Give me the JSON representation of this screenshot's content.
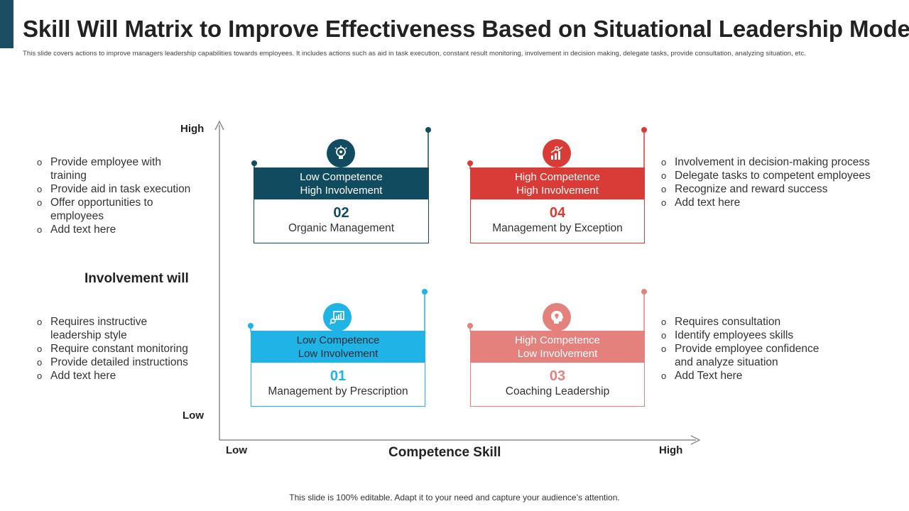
{
  "header": {
    "title": "Skill Will Matrix to Improve Effectiveness Based on Situational Leadership Model",
    "subtitle": "This slide covers actions to improve managers leadership capabilities towards employees. It includes actions such as aid in task execution, constant result monitoring, involvement in decision making,  delegate tasks, provide consultation, analyzing situation, etc."
  },
  "axes": {
    "y_high": "High",
    "y_low": "Low",
    "y_title": "Involvement will",
    "x_low": "Low",
    "x_high": "High",
    "x_title": "Competence  Skill"
  },
  "quadrants": {
    "q02": {
      "head_line1": "Low Competence",
      "head_line2": "High Involvement",
      "number": "02",
      "label": "Organic Management",
      "color": "#114b5f",
      "icon": "lightbulb-gear-icon"
    },
    "q04": {
      "head_line1": "High Competence",
      "head_line2": "High Involvement",
      "number": "04",
      "label": "Management by Exception",
      "color": "#d93b36",
      "icon": "growth-chart-icon"
    },
    "q01": {
      "head_line1": "Low Competence",
      "head_line2": "Low Involvement",
      "number": "01",
      "label": "Management by Prescription",
      "color": "#1fb3e6",
      "icon": "chart-magnifier-icon"
    },
    "q03": {
      "head_line1": "High Competence",
      "head_line2": "Low Involvement",
      "number": "03",
      "label": "Coaching Leadership",
      "color": "#e5817d",
      "icon": "head-idea-icon"
    }
  },
  "lists": {
    "top_left": [
      "Provide employee with training",
      "Provide aid in task execution",
      "Offer opportunities to employees",
      "Add text here"
    ],
    "top_right": [
      "Involvement  in decision-making process",
      "Delegate tasks to competent employees",
      "Recognize and reward success",
      "Add text here"
    ],
    "bottom_left": [
      "Requires instructive leadership style",
      "Require constant monitoring",
      "Provide detailed instructions",
      "Add text here"
    ],
    "bottom_right": [
      "Requires consultation",
      "Identify  employees skills",
      "Provide employee confidence and analyze situation",
      "Add Text here"
    ]
  },
  "footer": {
    "text": "This slide is 100% editable. Adapt it to your need and capture your audience’s attention."
  }
}
